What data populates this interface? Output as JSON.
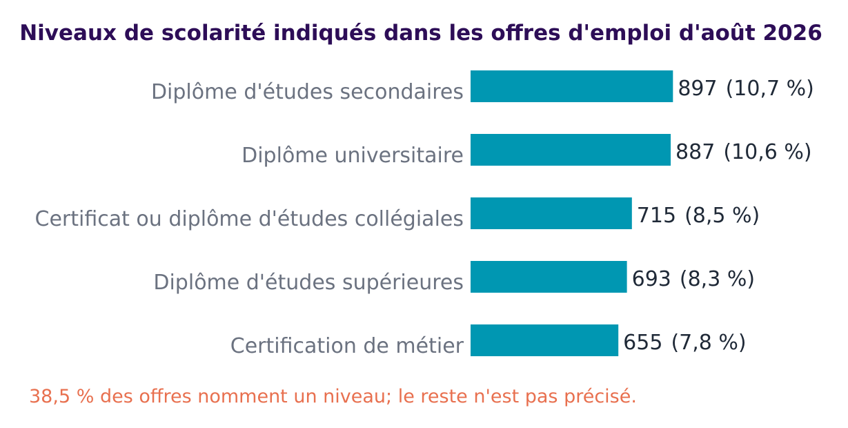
{
  "chart_data": {
    "type": "bar",
    "orientation": "horizontal",
    "title": "Niveaux de scolarité indiqués dans les offres d'emploi d'août 2026",
    "categories": [
      "Diplôme d'études secondaires",
      "Diplôme universitaire",
      "Certificat ou diplôme d'études collégiales",
      "Diplôme d'études supérieures",
      "Certification de métier"
    ],
    "values": [
      897,
      887,
      715,
      693,
      655
    ],
    "percent_labels": [
      "(10,7 %)",
      "(10,6 %)",
      "(8,5 %)",
      "(8,3 %)",
      "(7,8 %)"
    ],
    "xlim": [
      0,
      3000
    ],
    "grid": false,
    "legend": "none"
  },
  "footnote": "38,5 % des offres nomment un niveau; le reste n'est pas précisé.",
  "colors": {
    "title": "#2d0d57",
    "bar": "#0097b2",
    "category_text": "#6b7280",
    "value_text": "#1f2937",
    "footnote": "#e8704f"
  }
}
